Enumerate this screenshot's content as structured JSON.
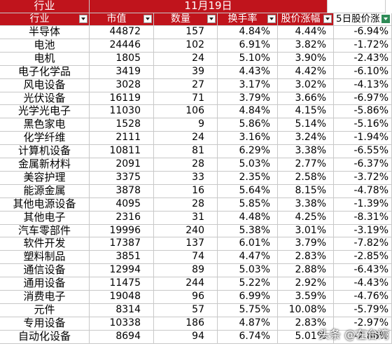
{
  "title_left": "行业",
  "date_label": "11月19日",
  "headers": [
    "行业",
    "市值",
    "数量",
    "换手率",
    "股价涨幅",
    "5日股价涨"
  ],
  "rows": [
    [
      "半导体",
      "44872",
      "157",
      "4.84%",
      "4.44%",
      "-6.94%"
    ],
    [
      "电池",
      "24446",
      "102",
      "6.91%",
      "3.82%",
      "-1.72%"
    ],
    [
      "电机",
      "1805",
      "24",
      "5.10%",
      "3.90%",
      "-2.43%"
    ],
    [
      "电子化学品",
      "3419",
      "39",
      "4.43%",
      "4.42%",
      "-6.10%"
    ],
    [
      "风电设备",
      "3028",
      "27",
      "3.17%",
      "3.02%",
      "-4.13%"
    ],
    [
      "光伏设备",
      "16119",
      "71",
      "3.79%",
      "3.66%",
      "-6.97%"
    ],
    [
      "光学光电子",
      "11030",
      "106",
      "4.84%",
      "4.15%",
      "-5.86%"
    ],
    [
      "黑色家电",
      "1528",
      "9",
      "5.86%",
      "5.14%",
      "-5.16%"
    ],
    [
      "化学纤维",
      "2111",
      "24",
      "3.16%",
      "3.24%",
      "-1.94%"
    ],
    [
      "计算机设备",
      "10811",
      "81",
      "6.29%",
      "3.38%",
      "-6.55%"
    ],
    [
      "金属新材料",
      "2091",
      "28",
      "5.03%",
      "2.77%",
      "-6.37%"
    ],
    [
      "美容护理",
      "3375",
      "33",
      "2.35%",
      "2.58%",
      "-3.72%"
    ],
    [
      "能源金属",
      "3878",
      "16",
      "5.64%",
      "8.15%",
      "-4.78%"
    ],
    [
      "其他电源设备",
      "4095",
      "28",
      "5.85%",
      "3.38%",
      "-1.39%"
    ],
    [
      "其他电子",
      "2316",
      "31",
      "4.48%",
      "4.25%",
      "-8.31%"
    ],
    [
      "汽车零部件",
      "19996",
      "240",
      "5.38%",
      "3.01%",
      "-3.19%"
    ],
    [
      "软件开发",
      "17387",
      "137",
      "6.01%",
      "3.79%",
      "-7.82%"
    ],
    [
      "塑料制品",
      "3851",
      "74",
      "4.47%",
      "2.83%",
      "-2.85%"
    ],
    [
      "通信设备",
      "12994",
      "89",
      "5.03%",
      "2.88%",
      "-6.43%"
    ],
    [
      "通用设备",
      "11475",
      "244",
      "5.22%",
      "2.92%",
      "-4.43%"
    ],
    [
      "消费电子",
      "19048",
      "96",
      "6.99%",
      "3.59%",
      "-4.76%"
    ],
    [
      "元件",
      "8314",
      "57",
      "5.75%",
      "10.08%",
      "-5.79%"
    ],
    [
      "专用设备",
      "10338",
      "186",
      "4.87%",
      "2.83%",
      "-2.97%"
    ],
    [
      "自动化设备",
      "8694",
      "94",
      "6.74%",
      "5.01%",
      "-2.86%"
    ]
  ],
  "watermark": "头条 @在台湾"
}
